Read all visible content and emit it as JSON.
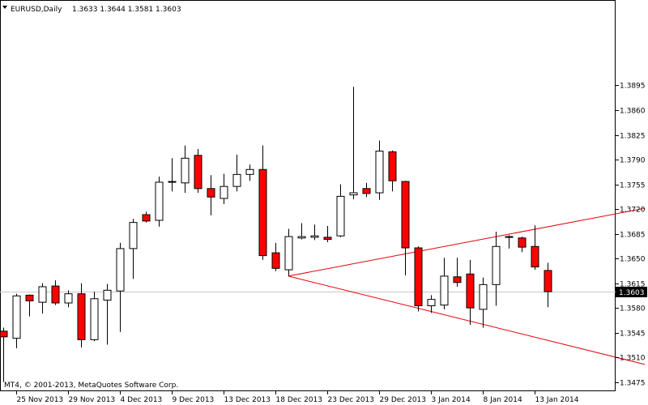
{
  "header": {
    "symbol": "EURUSD,Daily",
    "ohlc": "1.3633 1.3644 1.3581 1.3603"
  },
  "copyright": "MT4, © 2001-2013, MetaQuotes Software Corp.",
  "colors": {
    "bull_fill": "#ffffff",
    "bear_fill": "#ff0000",
    "wick": "#000000",
    "trendline": "#e8000b",
    "price_line": "#c8c8c8",
    "frame": "#000000"
  },
  "chart_data": {
    "type": "candlestick",
    "symbol": "EURUSD",
    "timeframe": "Daily",
    "ylim": [
      1.3462,
      1.4016
    ],
    "y_ticks": [
      "1.3895",
      "1.3860",
      "1.3825",
      "1.3790",
      "1.3755",
      "1.3720",
      "1.3685",
      "1.3650",
      "1.3615",
      "1.3580",
      "1.3545",
      "1.3510",
      "1.3475"
    ],
    "x_ticks": [
      {
        "label": "25 Nov 2013",
        "index": 1
      },
      {
        "label": "29 Nov 2013",
        "index": 5
      },
      {
        "label": "4 Dec 2013",
        "index": 9
      },
      {
        "label": "9 Dec 2013",
        "index": 13
      },
      {
        "label": "13 Dec 2013",
        "index": 17
      },
      {
        "label": "18 Dec 2013",
        "index": 21
      },
      {
        "label": "23 Dec 2013",
        "index": 25
      },
      {
        "label": "29 Dec 2013",
        "index": 29
      },
      {
        "label": "3 Jan 2014",
        "index": 33
      },
      {
        "label": "8 Jan 2014",
        "index": 37
      },
      {
        "label": "13 Jan 2014",
        "index": 41
      }
    ],
    "candles": [
      {
        "o": 1.3547,
        "h": 1.3552,
        "l": 1.3475,
        "c": 1.3539
      },
      {
        "o": 1.3537,
        "h": 1.36,
        "l": 1.3523,
        "c": 1.3597
      },
      {
        "o": 1.3598,
        "h": 1.3599,
        "l": 1.3568,
        "c": 1.359
      },
      {
        "o": 1.3588,
        "h": 1.3615,
        "l": 1.3572,
        "c": 1.361
      },
      {
        "o": 1.3611,
        "h": 1.3619,
        "l": 1.3584,
        "c": 1.3587
      },
      {
        "o": 1.3587,
        "h": 1.3605,
        "l": 1.3581,
        "c": 1.36
      },
      {
        "o": 1.36,
        "h": 1.3615,
        "l": 1.3524,
        "c": 1.3535
      },
      {
        "o": 1.3535,
        "h": 1.3603,
        "l": 1.3533,
        "c": 1.3593
      },
      {
        "o": 1.3591,
        "h": 1.3614,
        "l": 1.3528,
        "c": 1.3605
      },
      {
        "o": 1.3604,
        "h": 1.3672,
        "l": 1.3546,
        "c": 1.3664
      },
      {
        "o": 1.3664,
        "h": 1.3706,
        "l": 1.3621,
        "c": 1.3701
      },
      {
        "o": 1.3712,
        "h": 1.3716,
        "l": 1.3701,
        "c": 1.3703
      },
      {
        "o": 1.3704,
        "h": 1.3766,
        "l": 1.3695,
        "c": 1.3758
      },
      {
        "o": 1.3758,
        "h": 1.3792,
        "l": 1.3745,
        "c": 1.3759
      },
      {
        "o": 1.3757,
        "h": 1.381,
        "l": 1.3743,
        "c": 1.3792
      },
      {
        "o": 1.3796,
        "h": 1.3805,
        "l": 1.3743,
        "c": 1.3749
      },
      {
        "o": 1.3749,
        "h": 1.3768,
        "l": 1.3711,
        "c": 1.3737
      },
      {
        "o": 1.3735,
        "h": 1.377,
        "l": 1.3727,
        "c": 1.3752
      },
      {
        "o": 1.3752,
        "h": 1.3797,
        "l": 1.3745,
        "c": 1.3769
      },
      {
        "o": 1.3769,
        "h": 1.3783,
        "l": 1.376,
        "c": 1.3776
      },
      {
        "o": 1.3776,
        "h": 1.381,
        "l": 1.3648,
        "c": 1.3654
      },
      {
        "o": 1.3658,
        "h": 1.3672,
        "l": 1.3632,
        "c": 1.3636
      },
      {
        "o": 1.3634,
        "h": 1.3692,
        "l": 1.3625,
        "c": 1.3681
      },
      {
        "o": 1.3679,
        "h": 1.37,
        "l": 1.3677,
        "c": 1.3681
      },
      {
        "o": 1.368,
        "h": 1.3698,
        "l": 1.3676,
        "c": 1.3682
      },
      {
        "o": 1.368,
        "h": 1.3696,
        "l": 1.3673,
        "c": 1.3677
      },
      {
        "o": 1.3682,
        "h": 1.3755,
        "l": 1.368,
        "c": 1.3738
      },
      {
        "o": 1.374,
        "h": 1.3893,
        "l": 1.3734,
        "c": 1.3743
      },
      {
        "o": 1.3749,
        "h": 1.3757,
        "l": 1.3737,
        "c": 1.3742
      },
      {
        "o": 1.3743,
        "h": 1.3817,
        "l": 1.3733,
        "c": 1.3802
      },
      {
        "o": 1.3801,
        "h": 1.3803,
        "l": 1.3745,
        "c": 1.376
      },
      {
        "o": 1.3759,
        "h": 1.376,
        "l": 1.3626,
        "c": 1.3665
      },
      {
        "o": 1.3665,
        "h": 1.3667,
        "l": 1.3575,
        "c": 1.3583
      },
      {
        "o": 1.3583,
        "h": 1.3598,
        "l": 1.3573,
        "c": 1.3592
      },
      {
        "o": 1.3584,
        "h": 1.3651,
        "l": 1.3578,
        "c": 1.3625
      },
      {
        "o": 1.3624,
        "h": 1.3651,
        "l": 1.361,
        "c": 1.3616
      },
      {
        "o": 1.3628,
        "h": 1.3648,
        "l": 1.3556,
        "c": 1.358
      },
      {
        "o": 1.3578,
        "h": 1.3623,
        "l": 1.3552,
        "c": 1.3613
      },
      {
        "o": 1.3613,
        "h": 1.3688,
        "l": 1.3583,
        "c": 1.3667
      },
      {
        "o": 1.3681,
        "h": 1.3683,
        "l": 1.3664,
        "c": 1.368
      },
      {
        "o": 1.3679,
        "h": 1.3681,
        "l": 1.3659,
        "c": 1.3666
      },
      {
        "o": 1.3667,
        "h": 1.3697,
        "l": 1.3634,
        "c": 1.3638
      },
      {
        "o": 1.3633,
        "h": 1.3644,
        "l": 1.3581,
        "c": 1.3603
      }
    ],
    "current_price": "1.3603",
    "trendlines": [
      {
        "from": {
          "index": 22,
          "price": 1.3625
        },
        "to": {
          "index": 49.5,
          "price": 1.3721
        }
      },
      {
        "from": {
          "index": 22,
          "price": 1.3625
        },
        "to": {
          "index": 49.5,
          "price": 1.35
        }
      }
    ],
    "grid": false
  }
}
